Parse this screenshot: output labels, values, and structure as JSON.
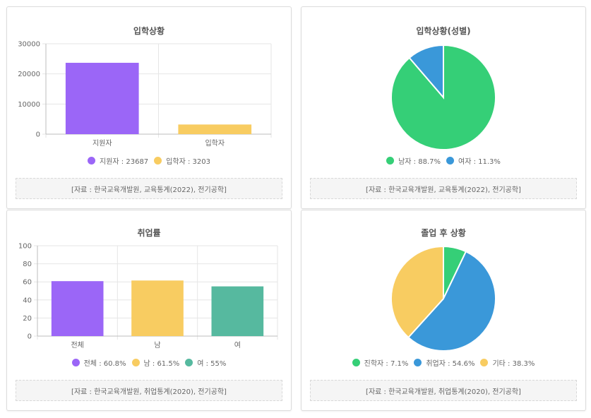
{
  "cards": [
    {
      "title": "입학상황",
      "source": "[자료 : 한국교육개발원, 교육통계(2022), 전기공학]",
      "legend": [
        "지원자 : 23687",
        "입학자 : 3203"
      ]
    },
    {
      "title": "입학상황(성별)",
      "source": "[자료 : 한국교육개발원, 교육통계(2022), 전기공학]",
      "legend": [
        "남자 : 88.7%",
        "여자 : 11.3%"
      ]
    },
    {
      "title": "취업률",
      "source": "[자료 : 한국교육개발원, 취업통계(2020), 전기공학]",
      "legend": [
        "전체 : 60.8%",
        "남 : 61.5%",
        "여 : 55%"
      ]
    },
    {
      "title": "졸업 후 상황",
      "source": "[자료 : 한국교육개발원, 취업통계(2020), 전기공학]",
      "legend": [
        "진학자 : 7.1%",
        "취업자 : 54.6%",
        "기타 : 38.3%"
      ]
    }
  ],
  "colors": {
    "purple": "#9b66f7",
    "yellow": "#f8cc61",
    "green": "#35cf77",
    "blue": "#3a98d9",
    "teal": "#56b99f"
  },
  "chart_data": [
    {
      "type": "bar",
      "title": "입학상황",
      "categories": [
        "지원자",
        "입학자"
      ],
      "values": [
        23687,
        3203
      ],
      "colors": [
        "#9b66f7",
        "#f8cc61"
      ],
      "ylim": [
        0,
        30000
      ],
      "yticks": [
        "0",
        "10000",
        "20000",
        "30000"
      ],
      "grid": true,
      "legend": "bottom"
    },
    {
      "type": "pie",
      "title": "입학상황(성별)",
      "labels": [
        "남자",
        "여자"
      ],
      "values": [
        88.7,
        11.3
      ],
      "colors": [
        "#35cf77",
        "#3a98d9"
      ],
      "legend": "bottom"
    },
    {
      "type": "bar",
      "title": "취업률",
      "categories": [
        "전체",
        "남",
        "여"
      ],
      "values": [
        60.8,
        61.5,
        55
      ],
      "colors": [
        "#9b66f7",
        "#f8cc61",
        "#56b99f"
      ],
      "ylim": [
        0,
        100
      ],
      "yticks": [
        "0",
        "20",
        "40",
        "60",
        "80",
        "100"
      ],
      "grid": true,
      "legend": "bottom"
    },
    {
      "type": "pie",
      "title": "졸업 후 상황",
      "labels": [
        "진학자",
        "취업자",
        "기타"
      ],
      "values": [
        7.1,
        54.6,
        38.3
      ],
      "colors": [
        "#35cf77",
        "#3a98d9",
        "#f8cc61"
      ],
      "legend": "bottom"
    }
  ]
}
